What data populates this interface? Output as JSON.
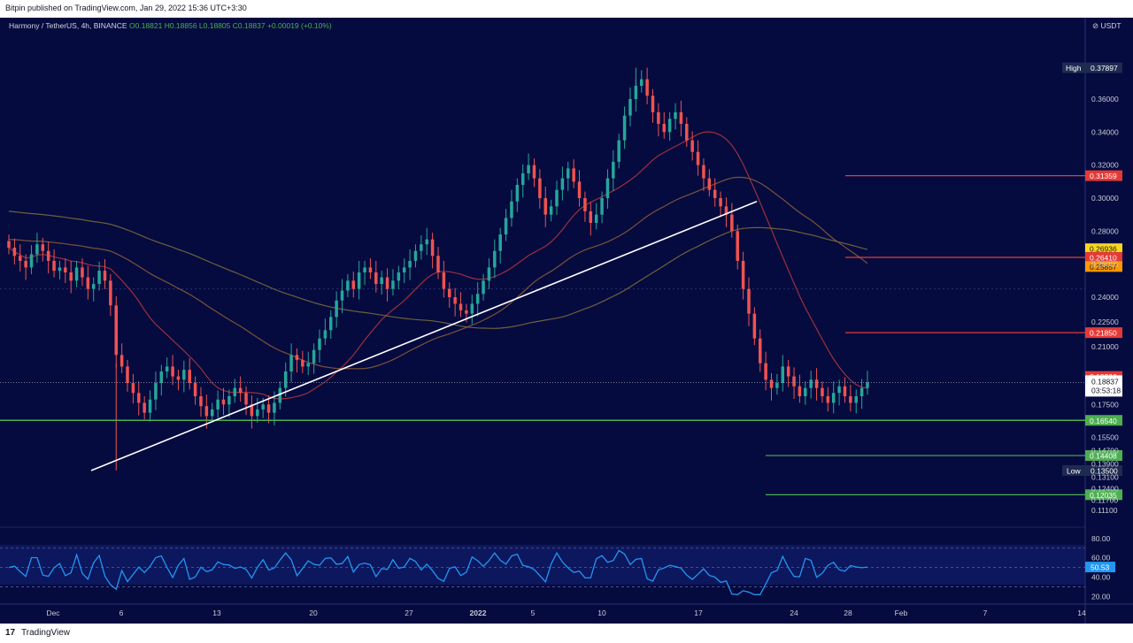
{
  "header": {
    "published": "Bitpin published on TradingView.com, Jan 29, 2022 15:36 UTC+3:30"
  },
  "legend": {
    "symbol": "Harmony / TetherUS, 4h, BINANCE",
    "ohlc": "O0.18821 H0.18856 L0.18805 C0.18837 +0.00019 (+0.10%)"
  },
  "price_axis": {
    "currency": "USDT",
    "ticks": [
      "0.36000",
      "0.34000",
      "0.32000",
      "0.30000",
      "0.28000",
      "0.26000",
      "0.24000",
      "0.22500",
      "0.21000",
      "0.17500",
      "0.15500",
      "0.14700",
      "0.13900",
      "0.13100",
      "0.12400",
      "0.11700",
      "0.11100"
    ],
    "high_label": "High",
    "high_value": "0.37897",
    "low_label": "Low",
    "low_value": "0.13500",
    "current_price": "0.18837",
    "countdown": "03:53:18"
  },
  "rsi_axis": {
    "ticks": [
      "80.00",
      "60.00",
      "40.00",
      "20.00"
    ],
    "value": "50.53"
  },
  "time_axis": {
    "ticks": [
      "Dec",
      "6",
      "13",
      "20",
      "27",
      "2022",
      "5",
      "10",
      "17",
      "24",
      "28",
      "Feb",
      "7",
      "14"
    ]
  },
  "levels": [
    {
      "value": "0.31359",
      "color": "#e53935"
    },
    {
      "value": "0.26936",
      "color": "#f9d71c"
    },
    {
      "value": "0.26410",
      "color": "#e53935"
    },
    {
      "value": "0.25857",
      "color": "#ff9800"
    },
    {
      "value": "0.21850",
      "color": "#e53935"
    },
    {
      "value": "0.19200",
      "color": "#e53935"
    },
    {
      "value": "0.16540",
      "color": "#4caf50"
    },
    {
      "value": "0.14408",
      "color": "#4caf50"
    },
    {
      "value": "0.12035",
      "color": "#4caf50"
    }
  ],
  "chart_data": {
    "type": "candlestick",
    "price_close_series": [
      0.27,
      0.265,
      0.262,
      0.258,
      0.266,
      0.272,
      0.268,
      0.262,
      0.256,
      0.258,
      0.255,
      0.25,
      0.258,
      0.252,
      0.245,
      0.248,
      0.256,
      0.25,
      0.235,
      0.205,
      0.198,
      0.188,
      0.182,
      0.176,
      0.17,
      0.178,
      0.188,
      0.195,
      0.198,
      0.192,
      0.19,
      0.196,
      0.188,
      0.18,
      0.174,
      0.168,
      0.172,
      0.178,
      0.175,
      0.18,
      0.185,
      0.182,
      0.175,
      0.168,
      0.172,
      0.175,
      0.17,
      0.176,
      0.185,
      0.195,
      0.205,
      0.202,
      0.198,
      0.2,
      0.208,
      0.215,
      0.22,
      0.228,
      0.238,
      0.244,
      0.25,
      0.245,
      0.255,
      0.258,
      0.255,
      0.248,
      0.252,
      0.245,
      0.25,
      0.255,
      0.258,
      0.262,
      0.268,
      0.272,
      0.275,
      0.265,
      0.255,
      0.245,
      0.24,
      0.236,
      0.232,
      0.23,
      0.236,
      0.242,
      0.25,
      0.258,
      0.268,
      0.278,
      0.288,
      0.298,
      0.308,
      0.315,
      0.32,
      0.312,
      0.3,
      0.29,
      0.295,
      0.305,
      0.312,
      0.318,
      0.31,
      0.3,
      0.292,
      0.285,
      0.29,
      0.3,
      0.312,
      0.322,
      0.335,
      0.35,
      0.36,
      0.368,
      0.372,
      0.362,
      0.352,
      0.345,
      0.34,
      0.348,
      0.352,
      0.345,
      0.335,
      0.328,
      0.32,
      0.312,
      0.305,
      0.3,
      0.295,
      0.29,
      0.28,
      0.262,
      0.245,
      0.23,
      0.215,
      0.2,
      0.19,
      0.185,
      0.188,
      0.198,
      0.192,
      0.186,
      0.18,
      0.185,
      0.19,
      0.185,
      0.18,
      0.176,
      0.182,
      0.186,
      0.18,
      0.176,
      0.18,
      0.185,
      0.18837
    ],
    "high": 0.37897,
    "low": 0.135,
    "current": 0.18837,
    "ylim": [
      0.105,
      0.405
    ],
    "trendline": {
      "from_price": 0.135,
      "to_price": 0.298
    },
    "rsi": {
      "value": 50.53,
      "ylim": [
        15,
        88
      ],
      "upper_band": 70,
      "middle": 50,
      "lower_band": 30
    },
    "colors": {
      "up": "#26a69a",
      "down": "#ef5350",
      "rsi": "#2196f3",
      "background": "#050b3f"
    }
  }
}
